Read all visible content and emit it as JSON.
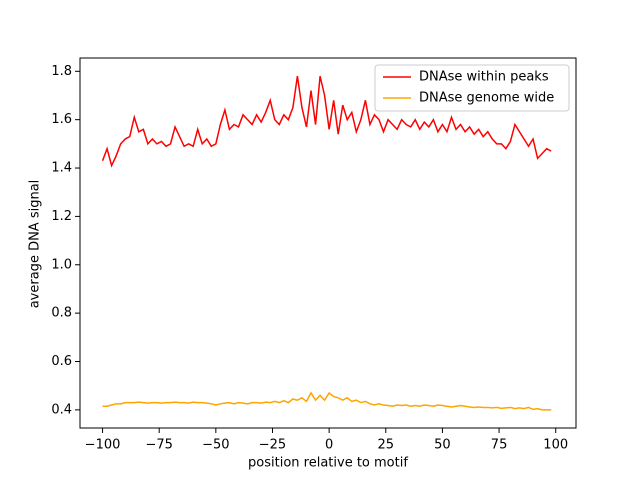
{
  "chart_data": {
    "type": "line",
    "xlabel": "position relative to motif",
    "ylabel": "average DNA signal",
    "x": [
      -100,
      -98,
      -96,
      -94,
      -92,
      -90,
      -88,
      -86,
      -84,
      -82,
      -80,
      -78,
      -76,
      -74,
      -72,
      -70,
      -68,
      -66,
      -64,
      -62,
      -60,
      -58,
      -56,
      -54,
      -52,
      -50,
      -48,
      -46,
      -44,
      -42,
      -40,
      -38,
      -36,
      -34,
      -32,
      -30,
      -28,
      -26,
      -24,
      -22,
      -20,
      -18,
      -16,
      -14,
      -12,
      -10,
      -8,
      -6,
      -4,
      -2,
      0,
      2,
      4,
      6,
      8,
      10,
      12,
      14,
      16,
      18,
      20,
      22,
      24,
      26,
      28,
      30,
      32,
      34,
      36,
      38,
      40,
      42,
      44,
      46,
      48,
      50,
      52,
      54,
      56,
      58,
      60,
      62,
      64,
      66,
      68,
      70,
      72,
      74,
      76,
      78,
      80,
      82,
      84,
      86,
      88,
      90,
      92,
      94,
      96,
      98
    ],
    "series": [
      {
        "name": "DNAse within peaks",
        "color": "#ff0000",
        "values": [
          1.43,
          1.48,
          1.41,
          1.45,
          1.5,
          1.52,
          1.53,
          1.61,
          1.55,
          1.56,
          1.5,
          1.52,
          1.5,
          1.51,
          1.49,
          1.5,
          1.57,
          1.53,
          1.49,
          1.5,
          1.49,
          1.56,
          1.5,
          1.52,
          1.49,
          1.5,
          1.58,
          1.64,
          1.56,
          1.58,
          1.57,
          1.62,
          1.6,
          1.58,
          1.62,
          1.59,
          1.63,
          1.68,
          1.6,
          1.58,
          1.62,
          1.6,
          1.65,
          1.78,
          1.65,
          1.57,
          1.72,
          1.58,
          1.78,
          1.7,
          1.56,
          1.68,
          1.54,
          1.66,
          1.6,
          1.63,
          1.55,
          1.6,
          1.68,
          1.58,
          1.62,
          1.6,
          1.55,
          1.6,
          1.58,
          1.56,
          1.6,
          1.58,
          1.57,
          1.6,
          1.56,
          1.59,
          1.57,
          1.6,
          1.55,
          1.58,
          1.55,
          1.61,
          1.56,
          1.58,
          1.55,
          1.57,
          1.54,
          1.56,
          1.53,
          1.55,
          1.52,
          1.5,
          1.5,
          1.48,
          1.51,
          1.58,
          1.55,
          1.52,
          1.49,
          1.52,
          1.44,
          1.46,
          1.48,
          1.47
        ]
      },
      {
        "name": "DNAse genome wide",
        "color": "#ffa500",
        "values": [
          0.415,
          0.415,
          0.42,
          0.425,
          0.425,
          0.43,
          0.43,
          0.43,
          0.432,
          0.43,
          0.428,
          0.43,
          0.43,
          0.428,
          0.43,
          0.43,
          0.432,
          0.43,
          0.43,
          0.428,
          0.432,
          0.43,
          0.43,
          0.428,
          0.425,
          0.42,
          0.425,
          0.428,
          0.43,
          0.425,
          0.43,
          0.428,
          0.425,
          0.43,
          0.43,
          0.428,
          0.432,
          0.43,
          0.435,
          0.43,
          0.438,
          0.43,
          0.445,
          0.44,
          0.45,
          0.435,
          0.47,
          0.44,
          0.46,
          0.44,
          0.47,
          0.455,
          0.45,
          0.44,
          0.45,
          0.435,
          0.44,
          0.43,
          0.435,
          0.425,
          0.42,
          0.425,
          0.42,
          0.418,
          0.415,
          0.42,
          0.418,
          0.42,
          0.415,
          0.418,
          0.415,
          0.42,
          0.418,
          0.415,
          0.42,
          0.418,
          0.415,
          0.412,
          0.415,
          0.418,
          0.415,
          0.412,
          0.41,
          0.412,
          0.41,
          0.41,
          0.408,
          0.41,
          0.406,
          0.408,
          0.41,
          0.405,
          0.408,
          0.405,
          0.41,
          0.402,
          0.405,
          0.4,
          0.4,
          0.4
        ]
      }
    ],
    "xlim": [
      -109.95,
      108.95
    ],
    "ylim": [
      0.325,
      1.855
    ],
    "xticks": [
      {
        "value": -100,
        "label": "−100"
      },
      {
        "value": -75,
        "label": "−75"
      },
      {
        "value": -50,
        "label": "−50"
      },
      {
        "value": -25,
        "label": "−25"
      },
      0,
      25,
      50,
      75,
      100
    ],
    "yticks": [
      0.4,
      0.6,
      0.8,
      {
        "value": 1,
        "label": "1.0"
      },
      1.2,
      1.4,
      1.6,
      1.8
    ],
    "grid": false,
    "legend": "upper right"
  }
}
